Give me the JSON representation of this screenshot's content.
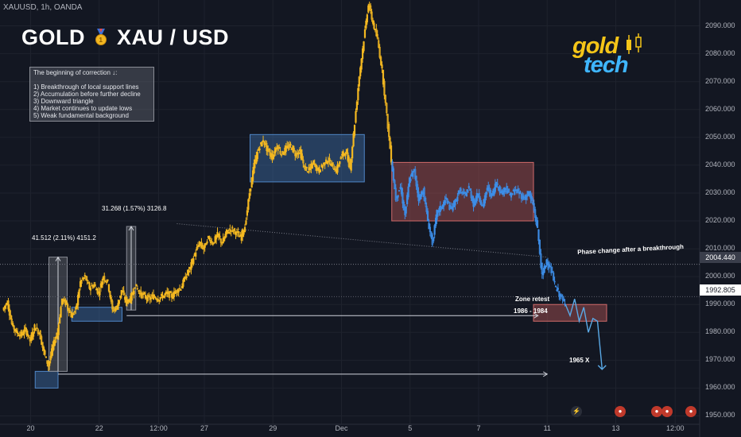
{
  "header": {
    "symbol_line": "XAUUSD, 1h, OANDA",
    "title_left": "GOLD",
    "title_right": "XAU / USD"
  },
  "note": {
    "heading": "The beginning of correction ↓:",
    "items": [
      "1) Breakthrough of local support lines",
      "2) Accumulation before further decline",
      "3) Downward triangle",
      "4) Market continues to update lows",
      "5) Weak fundamental background"
    ]
  },
  "logo": {
    "top": "gold",
    "bottom": "tech"
  },
  "annotations": {
    "measure1": "41.512 (2.11%) 4151.2",
    "measure2": "31.268 (1.57%) 3126.8",
    "phase_change": "Phase change after a breakthrough",
    "zone_retest": "Zone retest",
    "zone_range": "1986 - 1984",
    "target": "1965 X"
  },
  "price_tags": {
    "current": "2004.440",
    "marker": "1992.805"
  },
  "colors": {
    "background": "#131722",
    "candle_pre": "#f5b921",
    "candle_post": "#3d8ee8",
    "zone_blue": "#3f6ea8",
    "zone_red": "#b35656",
    "measure_grey": "#8a8d96"
  },
  "chart_data": {
    "type": "candlestick",
    "symbol": "XAUUSD",
    "timeframe": "1h",
    "y_axis": {
      "ticks": [
        1950,
        1960,
        1970,
        1980,
        1990,
        2000,
        2010,
        2020,
        2030,
        2040,
        2050,
        2060,
        2070,
        2080,
        2090
      ],
      "tick_labels": [
        "1950.000",
        "1960.000",
        "1970.000",
        "1980.000",
        "1990.000",
        "2000.000",
        "2010.000",
        "2020.000",
        "2030.000",
        "2040.000",
        "2050.000",
        "2060.000",
        "2070.000",
        "2080.000",
        "2090.000"
      ],
      "range": [
        1947,
        2099
      ]
    },
    "x_axis": {
      "ticks": [
        {
          "label": "20",
          "t": 6
        },
        {
          "label": "22",
          "t": 21
        },
        {
          "label": "12:00",
          "t": 34
        },
        {
          "label": "27",
          "t": 44
        },
        {
          "label": "29",
          "t": 59
        },
        {
          "label": "Dec",
          "t": 74
        },
        {
          "label": "5",
          "t": 89
        },
        {
          "label": "7",
          "t": 104
        },
        {
          "label": "11",
          "t": 119
        },
        {
          "label": "13",
          "t": 134
        },
        {
          "label": "12:00",
          "t": 147
        }
      ]
    },
    "price_path": [
      [
        0,
        1988
      ],
      [
        1,
        1991
      ],
      [
        2,
        1983
      ],
      [
        3,
        1980
      ],
      [
        4,
        1979
      ],
      [
        5,
        1981
      ],
      [
        6,
        1977
      ],
      [
        7,
        1982
      ],
      [
        8,
        1980
      ],
      [
        9,
        1973
      ],
      [
        10,
        1968
      ],
      [
        11,
        1975
      ],
      [
        12,
        1980
      ],
      [
        13,
        1992
      ],
      [
        14,
        1990
      ],
      [
        15,
        1986
      ],
      [
        16,
        1988
      ],
      [
        17,
        1998
      ],
      [
        18,
        2000
      ],
      [
        19,
        1996
      ],
      [
        20,
        1997
      ],
      [
        21,
        1994
      ],
      [
        22,
        2000
      ],
      [
        23,
        1998
      ],
      [
        24,
        1988
      ],
      [
        25,
        1989
      ],
      [
        26,
        1995
      ],
      [
        27,
        1991
      ],
      [
        28,
        1992
      ],
      [
        29,
        1997
      ],
      [
        30,
        1994
      ],
      [
        31,
        1993
      ],
      [
        32,
        1992
      ],
      [
        33,
        1993
      ],
      [
        34,
        1992
      ],
      [
        35,
        1993
      ],
      [
        36,
        1994
      ],
      [
        37,
        1993
      ],
      [
        38,
        1995
      ],
      [
        39,
        1996
      ],
      [
        40,
        2000
      ],
      [
        41,
        2003
      ],
      [
        42,
        2008
      ],
      [
        43,
        2012
      ],
      [
        44,
        2010
      ],
      [
        45,
        2014
      ],
      [
        46,
        2012
      ],
      [
        47,
        2015
      ],
      [
        48,
        2012
      ],
      [
        49,
        2016
      ],
      [
        50,
        2017
      ],
      [
        51,
        2016
      ],
      [
        52,
        2014
      ],
      [
        53,
        2018
      ],
      [
        54,
        2030
      ],
      [
        55,
        2040
      ],
      [
        56,
        2046
      ],
      [
        57,
        2049
      ],
      [
        58,
        2045
      ],
      [
        59,
        2043
      ],
      [
        60,
        2047
      ],
      [
        61,
        2044
      ],
      [
        62,
        2046
      ],
      [
        63,
        2047
      ],
      [
        64,
        2044
      ],
      [
        65,
        2045
      ],
      [
        66,
        2039
      ],
      [
        67,
        2038
      ],
      [
        68,
        2041
      ],
      [
        69,
        2038
      ],
      [
        70,
        2040
      ],
      [
        71,
        2042
      ],
      [
        72,
        2040
      ],
      [
        73,
        2038
      ],
      [
        74,
        2043
      ],
      [
        75,
        2045
      ],
      [
        76,
        2039
      ],
      [
        77,
        2055
      ],
      [
        78,
        2072
      ],
      [
        79,
        2085
      ],
      [
        80,
        2098
      ],
      [
        81,
        2091
      ],
      [
        82,
        2085
      ],
      [
        83,
        2074
      ],
      [
        84,
        2058
      ],
      [
        85,
        2042
      ],
      [
        86,
        2028
      ],
      [
        87,
        2032
      ],
      [
        88,
        2022
      ],
      [
        89,
        2035
      ],
      [
        90,
        2038
      ],
      [
        91,
        2028
      ],
      [
        92,
        2031
      ],
      [
        93,
        2020
      ],
      [
        94,
        2012
      ],
      [
        95,
        2023
      ],
      [
        96,
        2025
      ],
      [
        97,
        2028
      ],
      [
        98,
        2024
      ],
      [
        99,
        2027
      ],
      [
        100,
        2031
      ],
      [
        101,
        2029
      ],
      [
        102,
        2032
      ],
      [
        103,
        2026
      ],
      [
        104,
        2030
      ],
      [
        105,
        2025
      ],
      [
        106,
        2032
      ],
      [
        107,
        2029
      ],
      [
        108,
        2034
      ],
      [
        109,
        2030
      ],
      [
        110,
        2032
      ],
      [
        111,
        2029
      ],
      [
        112,
        2031
      ],
      [
        113,
        2030
      ],
      [
        114,
        2028
      ],
      [
        115,
        2030
      ],
      [
        116,
        2026
      ],
      [
        117,
        2017
      ],
      [
        118,
        2000
      ],
      [
        119,
        2006
      ],
      [
        120,
        2002
      ],
      [
        121,
        1996
      ],
      [
        122,
        1993
      ],
      [
        123,
        1990
      ]
    ],
    "projection_path": [
      [
        123,
        1990
      ],
      [
        124,
        1986
      ],
      [
        125,
        1992
      ],
      [
        126,
        1984
      ],
      [
        127,
        1989
      ],
      [
        128,
        1980
      ],
      [
        129,
        1985
      ],
      [
        130,
        1984
      ],
      [
        131,
        1967
      ]
    ],
    "zones": [
      {
        "color": "blue",
        "t0": 7,
        "t1": 12,
        "y0": 1966,
        "y1": 1960
      },
      {
        "color": "blue",
        "t0": 15,
        "t1": 26,
        "y0": 1989,
        "y1": 1984
      },
      {
        "color": "blue",
        "t0": 54,
        "t1": 79,
        "y0": 2051,
        "y1": 2034
      },
      {
        "color": "red",
        "t0": 85,
        "t1": 116,
        "y0": 2041,
        "y1": 2020
      },
      {
        "color": "red",
        "t0": 116,
        "t1": 132,
        "y0": 1990,
        "y1": 1984
      }
    ],
    "measures": [
      {
        "t0": 10,
        "t1": 14,
        "y0": 1966,
        "y1": 2007
      },
      {
        "t0": 27,
        "t1": 29,
        "y0": 1988,
        "y1": 2018
      }
    ],
    "lines": [
      {
        "name": "trendline",
        "t0": 38,
        "y0": 2019,
        "t1": 119,
        "y1": 2007,
        "style": "dotted"
      },
      {
        "name": "zone-line",
        "t0": 27,
        "y0": 1986,
        "t1": 117,
        "y1": 1986,
        "style": "arrow"
      },
      {
        "name": "target-line",
        "t0": 12,
        "y0": 1965,
        "t1": 119,
        "y1": 1965,
        "style": "arrow"
      }
    ],
    "current_price": 2004.44,
    "marker_price": 1992.805
  }
}
